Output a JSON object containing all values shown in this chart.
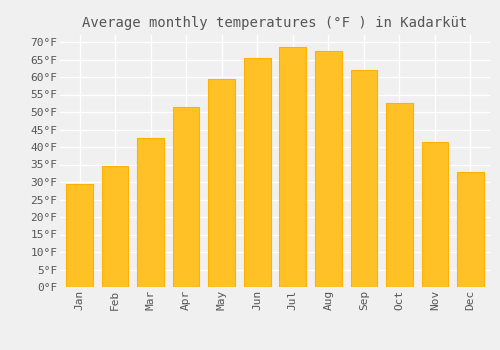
{
  "title": "Average monthly temperatures (°F ) in Kadarküt",
  "months": [
    "Jan",
    "Feb",
    "Mar",
    "Apr",
    "May",
    "Jun",
    "Jul",
    "Aug",
    "Sep",
    "Oct",
    "Nov",
    "Dec"
  ],
  "values": [
    29.5,
    34.5,
    42.5,
    51.5,
    59.5,
    65.5,
    68.5,
    67.5,
    62.0,
    52.5,
    41.5,
    33.0
  ],
  "bar_color": "#FFC125",
  "bar_edge_color": "#FFB000",
  "background_color": "#F0F0F0",
  "grid_color": "#FFFFFF",
  "text_color": "#555555",
  "ylim": [
    0,
    72
  ],
  "yticks": [
    0,
    5,
    10,
    15,
    20,
    25,
    30,
    35,
    40,
    45,
    50,
    55,
    60,
    65,
    70
  ],
  "title_fontsize": 10,
  "tick_fontsize": 8
}
